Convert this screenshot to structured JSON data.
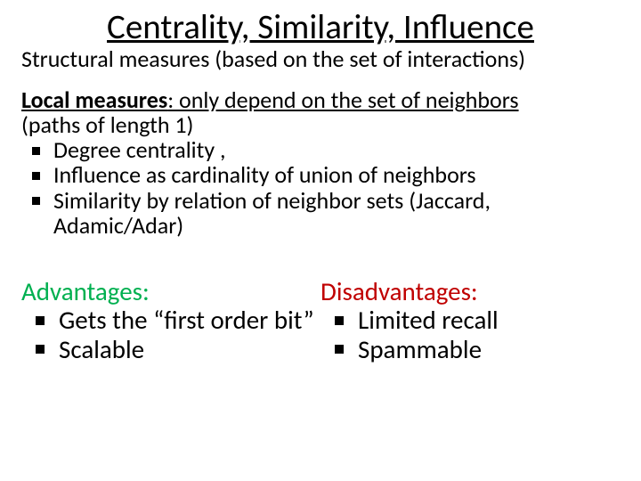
{
  "title": "Centrality, Similarity, Influence",
  "subtitle": "Structural measures (based on the set of interactions)",
  "local": {
    "heading_bold": "Local measures",
    "heading_rest": ": only depend on the set of neighbors",
    "heading_line2": "(paths of length 1)",
    "bullets": [
      "Degree centrality ,",
      "Influence as cardinality of union of neighbors",
      "Similarity by relation of neighbor sets (Jaccard, Adamic/Adar)"
    ]
  },
  "advantages": {
    "heading": "Advantages:",
    "color": "#00b050",
    "bullets": [
      "Gets the “first order bit”",
      "Scalable"
    ]
  },
  "disadvantages": {
    "heading": "Disadvantages:",
    "color": "#c00000",
    "bullets": [
      "Limited recall",
      "Spammable"
    ]
  },
  "styles": {
    "background": "#ffffff",
    "text_color": "#000000",
    "title_fontsize": 39,
    "subtitle_fontsize": 26,
    "body_fontsize": 26,
    "cols_fontsize": 29,
    "bullet_square_size": 9
  }
}
